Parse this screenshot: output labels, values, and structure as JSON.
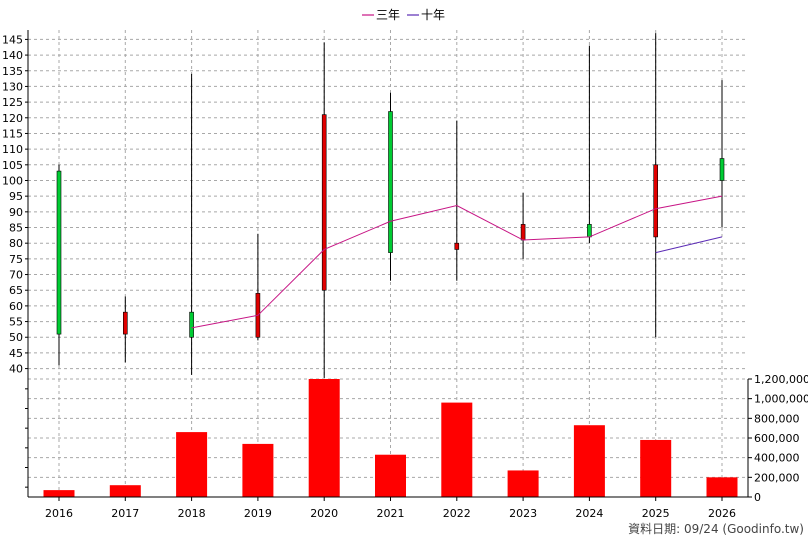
{
  "legend": {
    "items": [
      {
        "label": "三年",
        "color": "#c71585"
      },
      {
        "label": "十年",
        "color": "#5b2bb5"
      }
    ]
  },
  "footer": {
    "text": "資料日期: 09/24  (Goodinfo.tw)"
  },
  "colors": {
    "up": "#e00000",
    "down": "#00cc33",
    "volume": "#ff0000",
    "grid": "#a8a8a8"
  },
  "chart_data": [
    {
      "type": "candlestick",
      "categories": [
        "2016",
        "2017",
        "2018",
        "2019",
        "2020",
        "2021",
        "2022",
        "2023",
        "2024",
        "2025",
        "2026"
      ],
      "ylim": [
        37,
        148
      ],
      "yticks": [
        40,
        45,
        50,
        55,
        60,
        65,
        70,
        75,
        80,
        85,
        90,
        95,
        100,
        105,
        110,
        115,
        120,
        125,
        130,
        135,
        140,
        145
      ],
      "grid": true,
      "candles": [
        {
          "x": "2016",
          "open": 103,
          "close": 51,
          "high": 105,
          "low": 41
        },
        {
          "x": "2017",
          "open": 51,
          "close": 58,
          "high": 63,
          "low": 42
        },
        {
          "x": "2018",
          "open": 58,
          "close": 50,
          "high": 134,
          "low": 38
        },
        {
          "x": "2019",
          "open": 50,
          "close": 64,
          "high": 83,
          "low": 49
        },
        {
          "x": "2020",
          "open": 65,
          "close": 121,
          "high": 144,
          "low": 37
        },
        {
          "x": "2021",
          "open": 122,
          "close": 77,
          "high": 128,
          "low": 68
        },
        {
          "x": "2022",
          "open": 78,
          "close": 80,
          "high": 119,
          "low": 68
        },
        {
          "x": "2023",
          "open": 81,
          "close": 86,
          "high": 96,
          "low": 75
        },
        {
          "x": "2024",
          "open": 86,
          "close": 82,
          "high": 143,
          "low": 80
        },
        {
          "x": "2025",
          "open": 82,
          "close": 105,
          "high": 147,
          "low": 50
        },
        {
          "x": "2026",
          "open": 107,
          "close": 100,
          "high": 132,
          "low": 85
        }
      ],
      "series": [
        {
          "name": "三年",
          "color": "#c71585",
          "x": [
            "2018",
            "2019",
            "2020",
            "2021",
            "2022",
            "2023",
            "2024",
            "2025",
            "2026"
          ],
          "values": [
            53,
            57,
            78,
            87,
            92,
            81,
            82,
            91,
            95
          ]
        },
        {
          "name": "十年",
          "color": "#5b2bb5",
          "x": [
            "2025",
            "2026"
          ],
          "values": [
            77,
            82
          ]
        }
      ]
    },
    {
      "type": "bar",
      "categories": [
        "2016",
        "2017",
        "2018",
        "2019",
        "2020",
        "2021",
        "2022",
        "2023",
        "2024",
        "2025",
        "2026"
      ],
      "values": [
        70000,
        120000,
        660000,
        540000,
        1200000,
        430000,
        960000,
        270000,
        730000,
        580000,
        200000
      ],
      "ylim": [
        0,
        1200000
      ],
      "yticks": [
        0,
        200000,
        400000,
        600000,
        800000,
        1000000,
        1200000
      ],
      "ytick_labels": [
        "0",
        "200,000",
        "400,000",
        "600,000",
        "800,000",
        "1,000,000",
        "1,200,000"
      ],
      "grid": true
    }
  ]
}
